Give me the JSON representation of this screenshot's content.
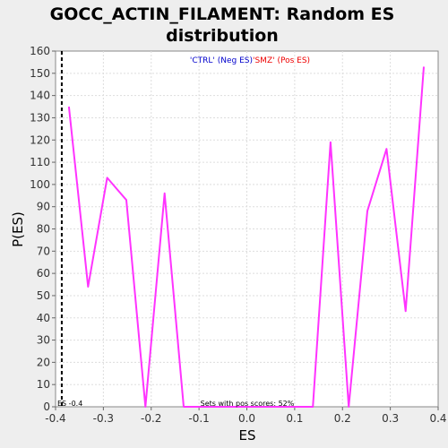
{
  "chart_data": {
    "type": "line",
    "title_line1": "GOCC_ACTIN_FILAMENT: Random ES",
    "title_line2": "distribution",
    "xlabel": "ES",
    "ylabel": "P(ES)",
    "xlim": [
      -0.4,
      0.4
    ],
    "ylim": [
      0,
      160
    ],
    "xticks": [
      -0.4,
      -0.3,
      -0.2,
      -0.1,
      0.0,
      0.1,
      0.2,
      0.3,
      0.4
    ],
    "xtick_labels": [
      "-0.4",
      "-0.3",
      "-0.2",
      "-0.1",
      "0.0",
      "0.1",
      "0.2",
      "0.3",
      "0.4"
    ],
    "yticks": [
      0,
      10,
      20,
      30,
      40,
      50,
      60,
      70,
      80,
      90,
      100,
      110,
      120,
      130,
      140,
      150,
      160
    ],
    "grid": true,
    "legend": {
      "neg_label": "'CTRL' (Neg ES)",
      "pos_label": "'SMZ' (Pos ES)",
      "neg_color": "#0000cc",
      "pos_color": "#ee0000",
      "position": "top-center"
    },
    "line_color": "#ff33ff",
    "series": [
      {
        "x": [
          -0.372,
          -0.332,
          -0.292,
          -0.252,
          -0.212,
          -0.172,
          -0.132,
          -0.092,
          -0.052,
          -0.012,
          0.028,
          0.068,
          0.108,
          0.138,
          0.175,
          0.213,
          0.252,
          0.292,
          0.332,
          0.37
        ],
        "y": [
          135,
          54,
          103,
          93,
          0,
          96,
          0,
          0,
          0,
          0,
          0,
          0,
          0,
          0,
          119,
          0,
          88,
          116,
          43,
          153
        ]
      }
    ],
    "marker_line": {
      "x": -0.387,
      "color": "#000000",
      "style": "dashed"
    },
    "annotations": {
      "left": "ES -0.4",
      "center": "Sets with pos scores: 52%"
    }
  }
}
